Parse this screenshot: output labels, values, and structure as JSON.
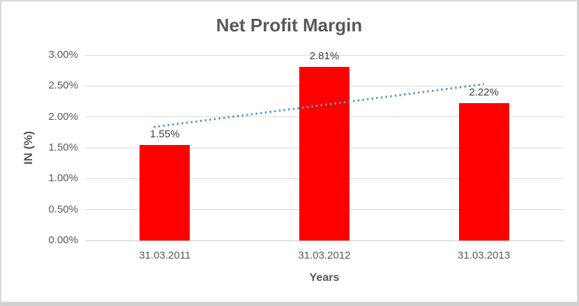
{
  "chart_data": {
    "type": "bar",
    "title": "Net Profit Margin",
    "categories": [
      "31.03.2011",
      "31.03.2012",
      "31.03.2013"
    ],
    "values": [
      1.55,
      2.81,
      2.22
    ],
    "data_labels": [
      "1.55%",
      "2.81%",
      "2.22%"
    ],
    "xlabel": "Years",
    "ylabel": "IN (%)",
    "ylim": [
      0,
      3
    ],
    "ytick_step": 0.5,
    "ytick_labels": [
      "0.00%",
      "0.50%",
      "1.00%",
      "1.50%",
      "2.00%",
      "2.50%",
      "3.00%"
    ],
    "grid": true,
    "legend": "none",
    "bar_color": "#FF0000",
    "gridline_color": "#D9D9D9",
    "axis_line_color": "#C9C9C9",
    "title_color": "#595959",
    "axis_text_color": "#595959",
    "data_label_color": "#404040",
    "trendline": {
      "type": "linear",
      "style": "dotted",
      "color": "#5B9BD5",
      "start_value": 1.86,
      "end_value": 2.53
    }
  }
}
